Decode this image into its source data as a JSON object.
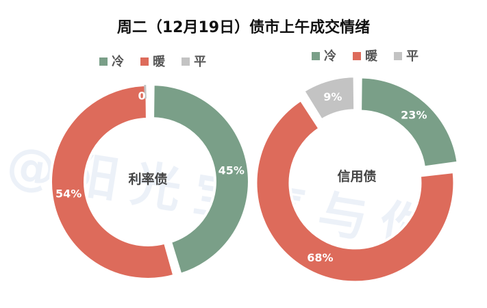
{
  "title": "周二（12月19日）债市上午成交情绪",
  "watermark": "@阳光宝气与你",
  "colors": {
    "cold": "#7a9f88",
    "warm": "#dd6b5b",
    "flat": "#c3c3c3"
  },
  "chart_data": [
    {
      "type": "pie",
      "center_label": "利率债",
      "legend": [
        "冷",
        "暖",
        "平"
      ],
      "slices": [
        {
          "name": "冷",
          "value": 45,
          "label": "45%"
        },
        {
          "name": "暖",
          "value": 54,
          "label": "54%"
        },
        {
          "name": "平",
          "value": 0,
          "label": "0"
        }
      ],
      "legend_position": "top"
    },
    {
      "type": "pie",
      "center_label": "信用债",
      "legend": [
        "冷",
        "暖",
        "平"
      ],
      "slices": [
        {
          "name": "冷",
          "value": 23,
          "label": "23%"
        },
        {
          "name": "暖",
          "value": 68,
          "label": "68%"
        },
        {
          "name": "平",
          "value": 9,
          "label": "9%"
        }
      ],
      "legend_position": "top"
    }
  ]
}
